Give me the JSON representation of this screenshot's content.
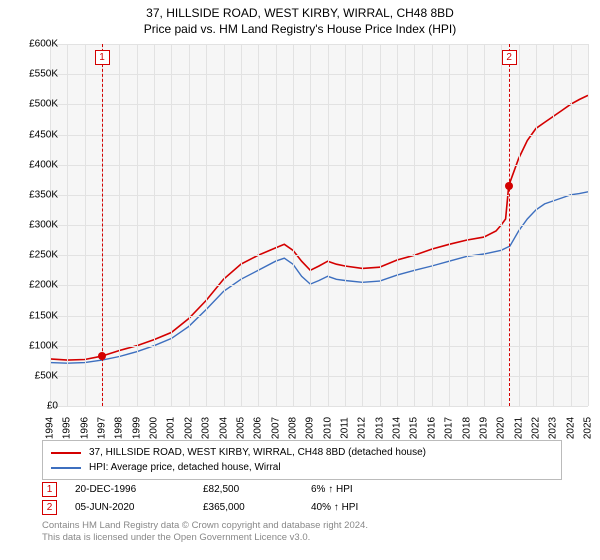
{
  "title_line1": "37, HILLSIDE ROAD, WEST KIRBY, WIRRAL, CH48 8BD",
  "title_line2": "Price paid vs. HM Land Registry's House Price Index (HPI)",
  "chart": {
    "type": "line",
    "background_color": "#f6f6f6",
    "grid_color": "#e2e2e2",
    "x_min": 1994,
    "x_max": 2025,
    "y_min": 0,
    "y_max": 600000,
    "y_ticks": [
      0,
      50000,
      100000,
      150000,
      200000,
      250000,
      300000,
      350000,
      400000,
      450000,
      500000,
      550000,
      600000
    ],
    "y_tick_labels": [
      "£0",
      "£50K",
      "£100K",
      "£150K",
      "£200K",
      "£250K",
      "£300K",
      "£350K",
      "£400K",
      "£450K",
      "£500K",
      "£550K",
      "£600K"
    ],
    "x_ticks": [
      1994,
      1995,
      1996,
      1997,
      1998,
      1999,
      2000,
      2001,
      2002,
      2003,
      2004,
      2005,
      2006,
      2007,
      2008,
      2009,
      2010,
      2011,
      2012,
      2013,
      2014,
      2015,
      2016,
      2017,
      2018,
      2019,
      2020,
      2021,
      2022,
      2023,
      2024,
      2025
    ],
    "series": [
      {
        "name": "price_paid",
        "color": "#d40000",
        "line_width": 1.6,
        "points": [
          [
            1994,
            78000
          ],
          [
            1995,
            76000
          ],
          [
            1996,
            77000
          ],
          [
            1996.97,
            82500
          ],
          [
            1998,
            92000
          ],
          [
            1999,
            100000
          ],
          [
            2000,
            110000
          ],
          [
            2001,
            122000
          ],
          [
            2002,
            145000
          ],
          [
            2003,
            175000
          ],
          [
            2004,
            210000
          ],
          [
            2005,
            235000
          ],
          [
            2006,
            250000
          ],
          [
            2007,
            262000
          ],
          [
            2007.5,
            268000
          ],
          [
            2008,
            258000
          ],
          [
            2008.5,
            240000
          ],
          [
            2009,
            225000
          ],
          [
            2009.5,
            232000
          ],
          [
            2010,
            240000
          ],
          [
            2010.5,
            235000
          ],
          [
            2011,
            232000
          ],
          [
            2012,
            228000
          ],
          [
            2013,
            230000
          ],
          [
            2014,
            242000
          ],
          [
            2015,
            250000
          ],
          [
            2016,
            260000
          ],
          [
            2017,
            268000
          ],
          [
            2018,
            275000
          ],
          [
            2019,
            280000
          ],
          [
            2019.7,
            290000
          ],
          [
            2020,
            300000
          ],
          [
            2020.25,
            310000
          ],
          [
            2020.43,
            365000
          ],
          [
            2021,
            410000
          ],
          [
            2021.5,
            440000
          ],
          [
            2022,
            460000
          ],
          [
            2022.5,
            470000
          ],
          [
            2023,
            480000
          ],
          [
            2023.5,
            490000
          ],
          [
            2024,
            500000
          ],
          [
            2024.5,
            508000
          ],
          [
            2025,
            515000
          ]
        ]
      },
      {
        "name": "hpi",
        "color": "#3d6fbf",
        "line_width": 1.4,
        "points": [
          [
            1994,
            72000
          ],
          [
            1995,
            71000
          ],
          [
            1996,
            72000
          ],
          [
            1997,
            76000
          ],
          [
            1998,
            82000
          ],
          [
            1999,
            90000
          ],
          [
            2000,
            100000
          ],
          [
            2001,
            112000
          ],
          [
            2002,
            132000
          ],
          [
            2003,
            160000
          ],
          [
            2004,
            190000
          ],
          [
            2005,
            210000
          ],
          [
            2006,
            225000
          ],
          [
            2007,
            240000
          ],
          [
            2007.5,
            245000
          ],
          [
            2008,
            235000
          ],
          [
            2008.5,
            215000
          ],
          [
            2009,
            202000
          ],
          [
            2009.5,
            208000
          ],
          [
            2010,
            215000
          ],
          [
            2010.5,
            210000
          ],
          [
            2011,
            208000
          ],
          [
            2012,
            205000
          ],
          [
            2013,
            207000
          ],
          [
            2014,
            217000
          ],
          [
            2015,
            225000
          ],
          [
            2016,
            232000
          ],
          [
            2017,
            240000
          ],
          [
            2018,
            248000
          ],
          [
            2019,
            252000
          ],
          [
            2020,
            258000
          ],
          [
            2020.5,
            265000
          ],
          [
            2021,
            290000
          ],
          [
            2021.5,
            310000
          ],
          [
            2022,
            325000
          ],
          [
            2022.5,
            335000
          ],
          [
            2023,
            340000
          ],
          [
            2023.5,
            345000
          ],
          [
            2024,
            350000
          ],
          [
            2024.5,
            352000
          ],
          [
            2025,
            355000
          ]
        ]
      }
    ],
    "markers": [
      {
        "id": "1",
        "x": 1996.97,
        "y": 82500,
        "color": "#d40000"
      },
      {
        "id": "2",
        "x": 2020.43,
        "y": 365000,
        "color": "#d40000"
      }
    ]
  },
  "legend": {
    "items": [
      {
        "color": "#d40000",
        "label": "37, HILLSIDE ROAD, WEST KIRBY, WIRRAL, CH48 8BD (detached house)"
      },
      {
        "color": "#3d6fbf",
        "label": "HPI: Average price, detached house, Wirral"
      }
    ]
  },
  "marker_rows": [
    {
      "id": "1",
      "color": "#d40000",
      "date": "20-DEC-1996",
      "price": "£82,500",
      "pct": "6% ↑ HPI"
    },
    {
      "id": "2",
      "color": "#d40000",
      "date": "05-JUN-2020",
      "price": "£365,000",
      "pct": "40% ↑ HPI"
    }
  ],
  "footnote_line1": "Contains HM Land Registry data © Crown copyright and database right 2024.",
  "footnote_line2": "This data is licensed under the Open Government Licence v3.0."
}
